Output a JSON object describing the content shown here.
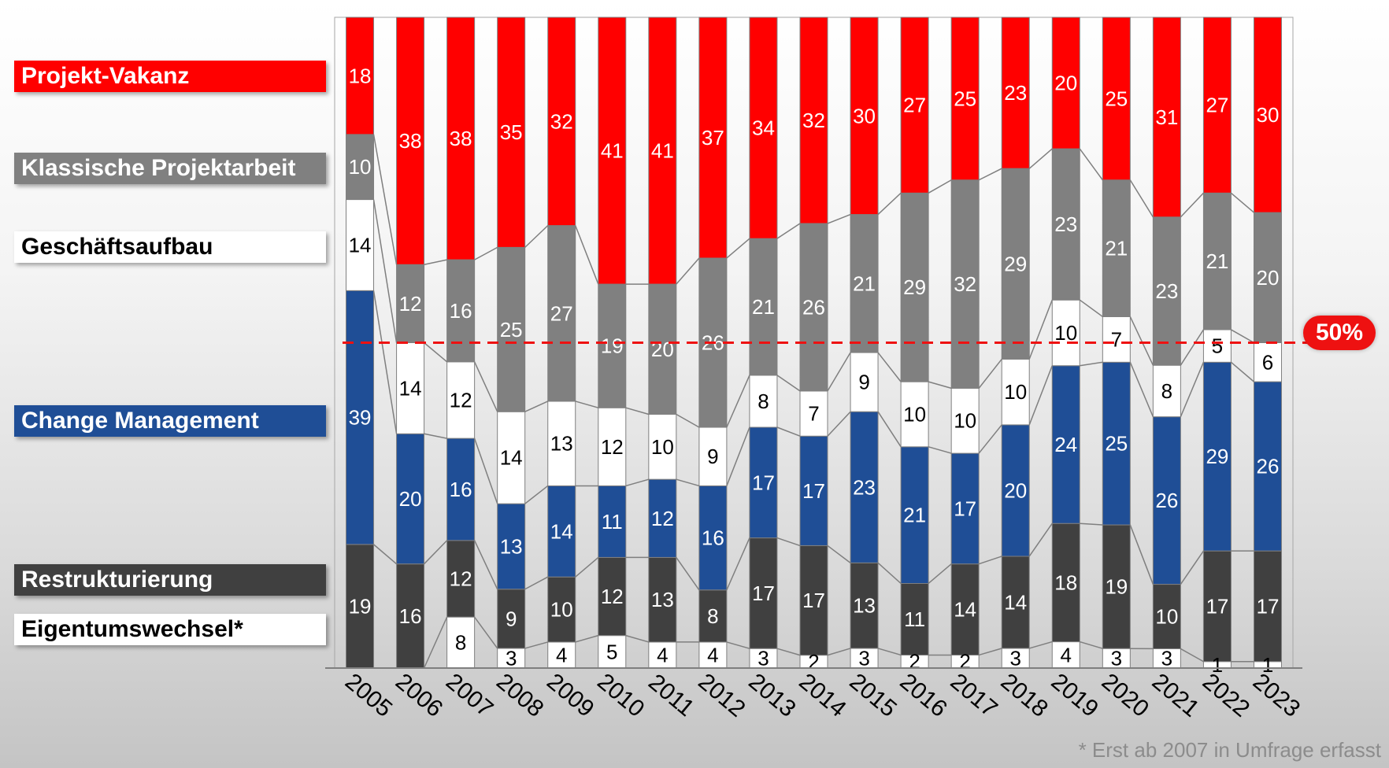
{
  "chart_data": {
    "type": "bar",
    "stacked": true,
    "percent_stacked": true,
    "categories": [
      "2005",
      "2006",
      "2007",
      "2008",
      "2009",
      "2010",
      "2011",
      "2012",
      "2013",
      "2014",
      "2015",
      "2016",
      "2017",
      "2018",
      "2019",
      "2020",
      "2021",
      "2022",
      "2023"
    ],
    "series": [
      {
        "name": "Eigentumswechsel*",
        "color": "#ffffff",
        "label_color": "#000000",
        "values": [
          0,
          0,
          8,
          3,
          4,
          5,
          4,
          4,
          3,
          2,
          3,
          2,
          2,
          3,
          4,
          3,
          3,
          1,
          1
        ]
      },
      {
        "name": "Restrukturierung",
        "color": "#404040",
        "label_color": "#ffffff",
        "values": [
          19,
          16,
          12,
          9,
          10,
          12,
          13,
          8,
          17,
          17,
          13,
          11,
          14,
          14,
          18,
          19,
          10,
          17,
          17
        ]
      },
      {
        "name": "Change Management",
        "color": "#1f4e96",
        "label_color": "#ffffff",
        "values": [
          39,
          20,
          16,
          13,
          14,
          11,
          12,
          16,
          17,
          17,
          23,
          21,
          17,
          20,
          24,
          25,
          26,
          29,
          26
        ]
      },
      {
        "name": "Geschäftsaufbau",
        "color": "#ffffff",
        "label_color": "#000000",
        "values": [
          14,
          14,
          12,
          14,
          13,
          12,
          10,
          9,
          8,
          7,
          9,
          10,
          10,
          10,
          10,
          7,
          8,
          5,
          6
        ]
      },
      {
        "name": "Klassische Projektarbeit",
        "color": "#808080",
        "label_color": "#ffffff",
        "values": [
          10,
          12,
          16,
          25,
          27,
          19,
          20,
          26,
          21,
          26,
          21,
          29,
          32,
          29,
          23,
          21,
          23,
          21,
          20
        ]
      },
      {
        "name": "Projekt-Vakanz",
        "color": "#ff0000",
        "label_color": "#ffffff",
        "values": [
          18,
          38,
          38,
          35,
          32,
          41,
          41,
          37,
          34,
          32,
          30,
          27,
          25,
          23,
          20,
          25,
          31,
          27,
          30
        ]
      }
    ],
    "reference_line": {
      "value": 50,
      "label": "50%",
      "color": "#ee1111",
      "style": "dashed"
    },
    "legend_placement": "left",
    "grid": false,
    "footnote": "* Erst ab 2007 in Umfrage erfasst"
  },
  "legend": [
    {
      "label": "Projekt-Vakanz",
      "bg": "#ff0000",
      "fg": "#ffffff"
    },
    {
      "label": "Klassische Projektarbeit",
      "bg": "#808080",
      "fg": "#ffffff"
    },
    {
      "label": "Geschäftsaufbau",
      "bg": "#ffffff",
      "fg": "#000000"
    },
    {
      "label": "Change Management",
      "bg": "#1f4e96",
      "fg": "#ffffff"
    },
    {
      "label": "Restrukturierung",
      "bg": "#404040",
      "fg": "#ffffff"
    },
    {
      "label": "Eigentumswechsel*",
      "bg": "#ffffff",
      "fg": "#000000"
    }
  ]
}
